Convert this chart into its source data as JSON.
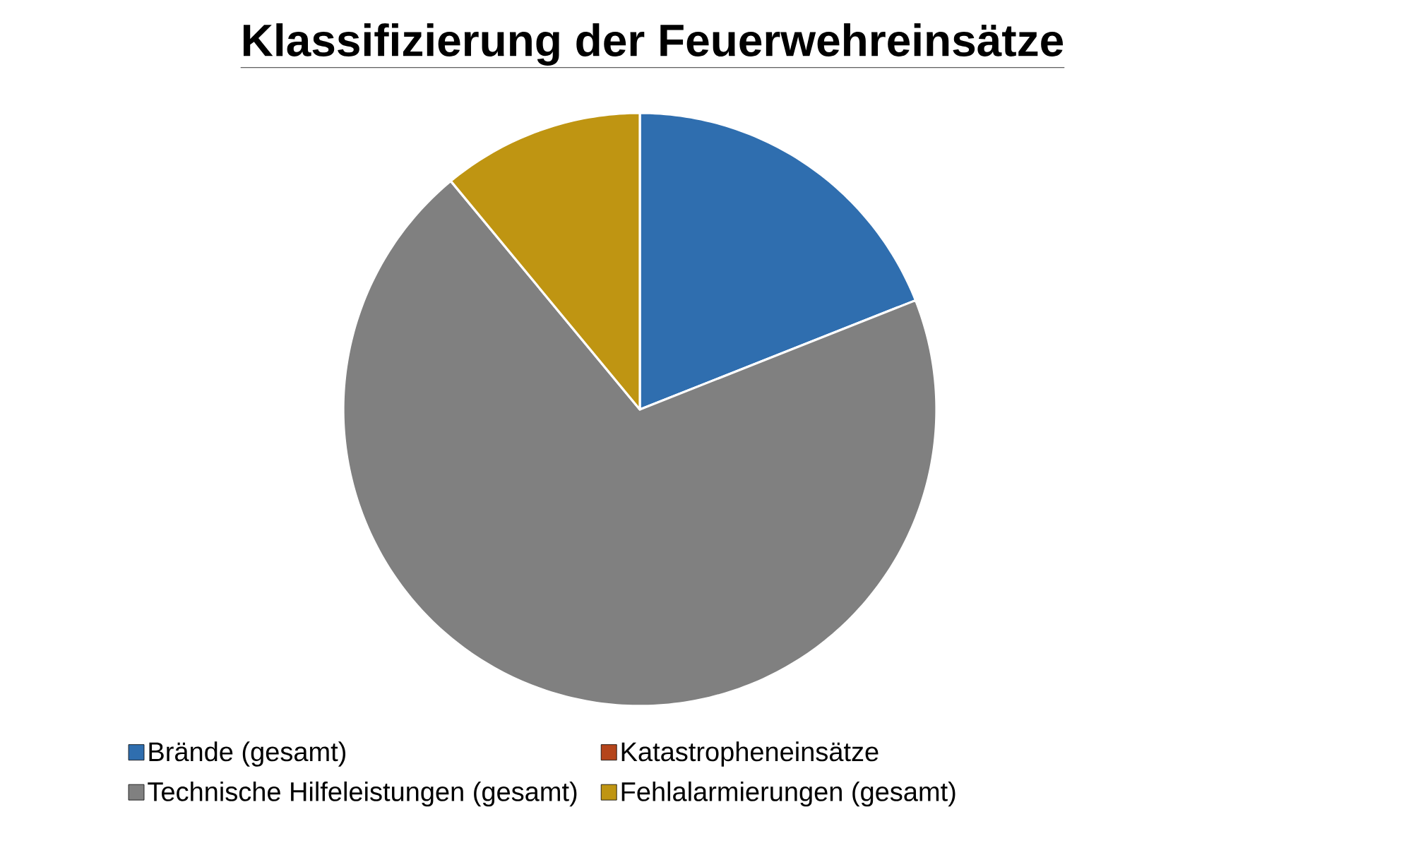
{
  "chart_data": {
    "type": "pie",
    "title": "Klassifizierung der Feuerwehreinsätze",
    "categories": [
      "Brände (gesamt)",
      "Katastropheneinsätze",
      "Technische Hilfeleistungen (gesamt)",
      "Fehlalarmierungen (gesamt)"
    ],
    "values": [
      19,
      0,
      70,
      11
    ],
    "colors": [
      "#2f6eaf",
      "#b5451b",
      "#808080",
      "#bf9512"
    ],
    "legend": "bottom"
  }
}
